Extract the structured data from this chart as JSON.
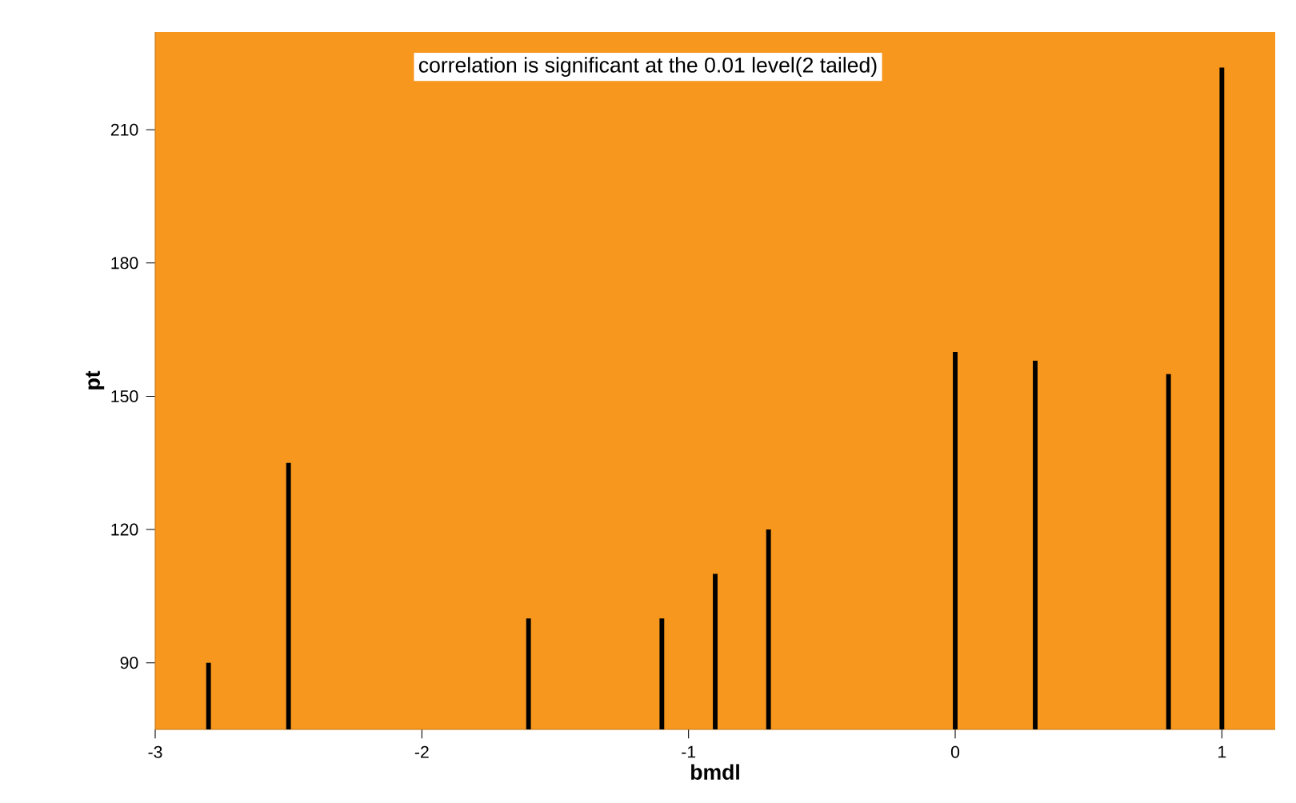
{
  "chart_data": {
    "type": "bar",
    "xlabel": "bmdl",
    "ylabel": "pt",
    "annotations": [
      "correlation is significant at the 0.01 level(2 tailed)"
    ],
    "x": [
      -2.8,
      -2.5,
      -1.6,
      -1.1,
      -0.9,
      -0.7,
      0,
      0.3,
      0.8,
      1.0
    ],
    "values": [
      90,
      135,
      100,
      100,
      110,
      120,
      160,
      158,
      155,
      224
    ],
    "color": "#000000",
    "xlim": [
      -3,
      1.2
    ],
    "xticks": [
      -3,
      -2,
      -1,
      0,
      1
    ],
    "ylim": [
      75,
      232
    ],
    "yticks": [
      90,
      120,
      150,
      180,
      210
    ],
    "grid": false
  }
}
